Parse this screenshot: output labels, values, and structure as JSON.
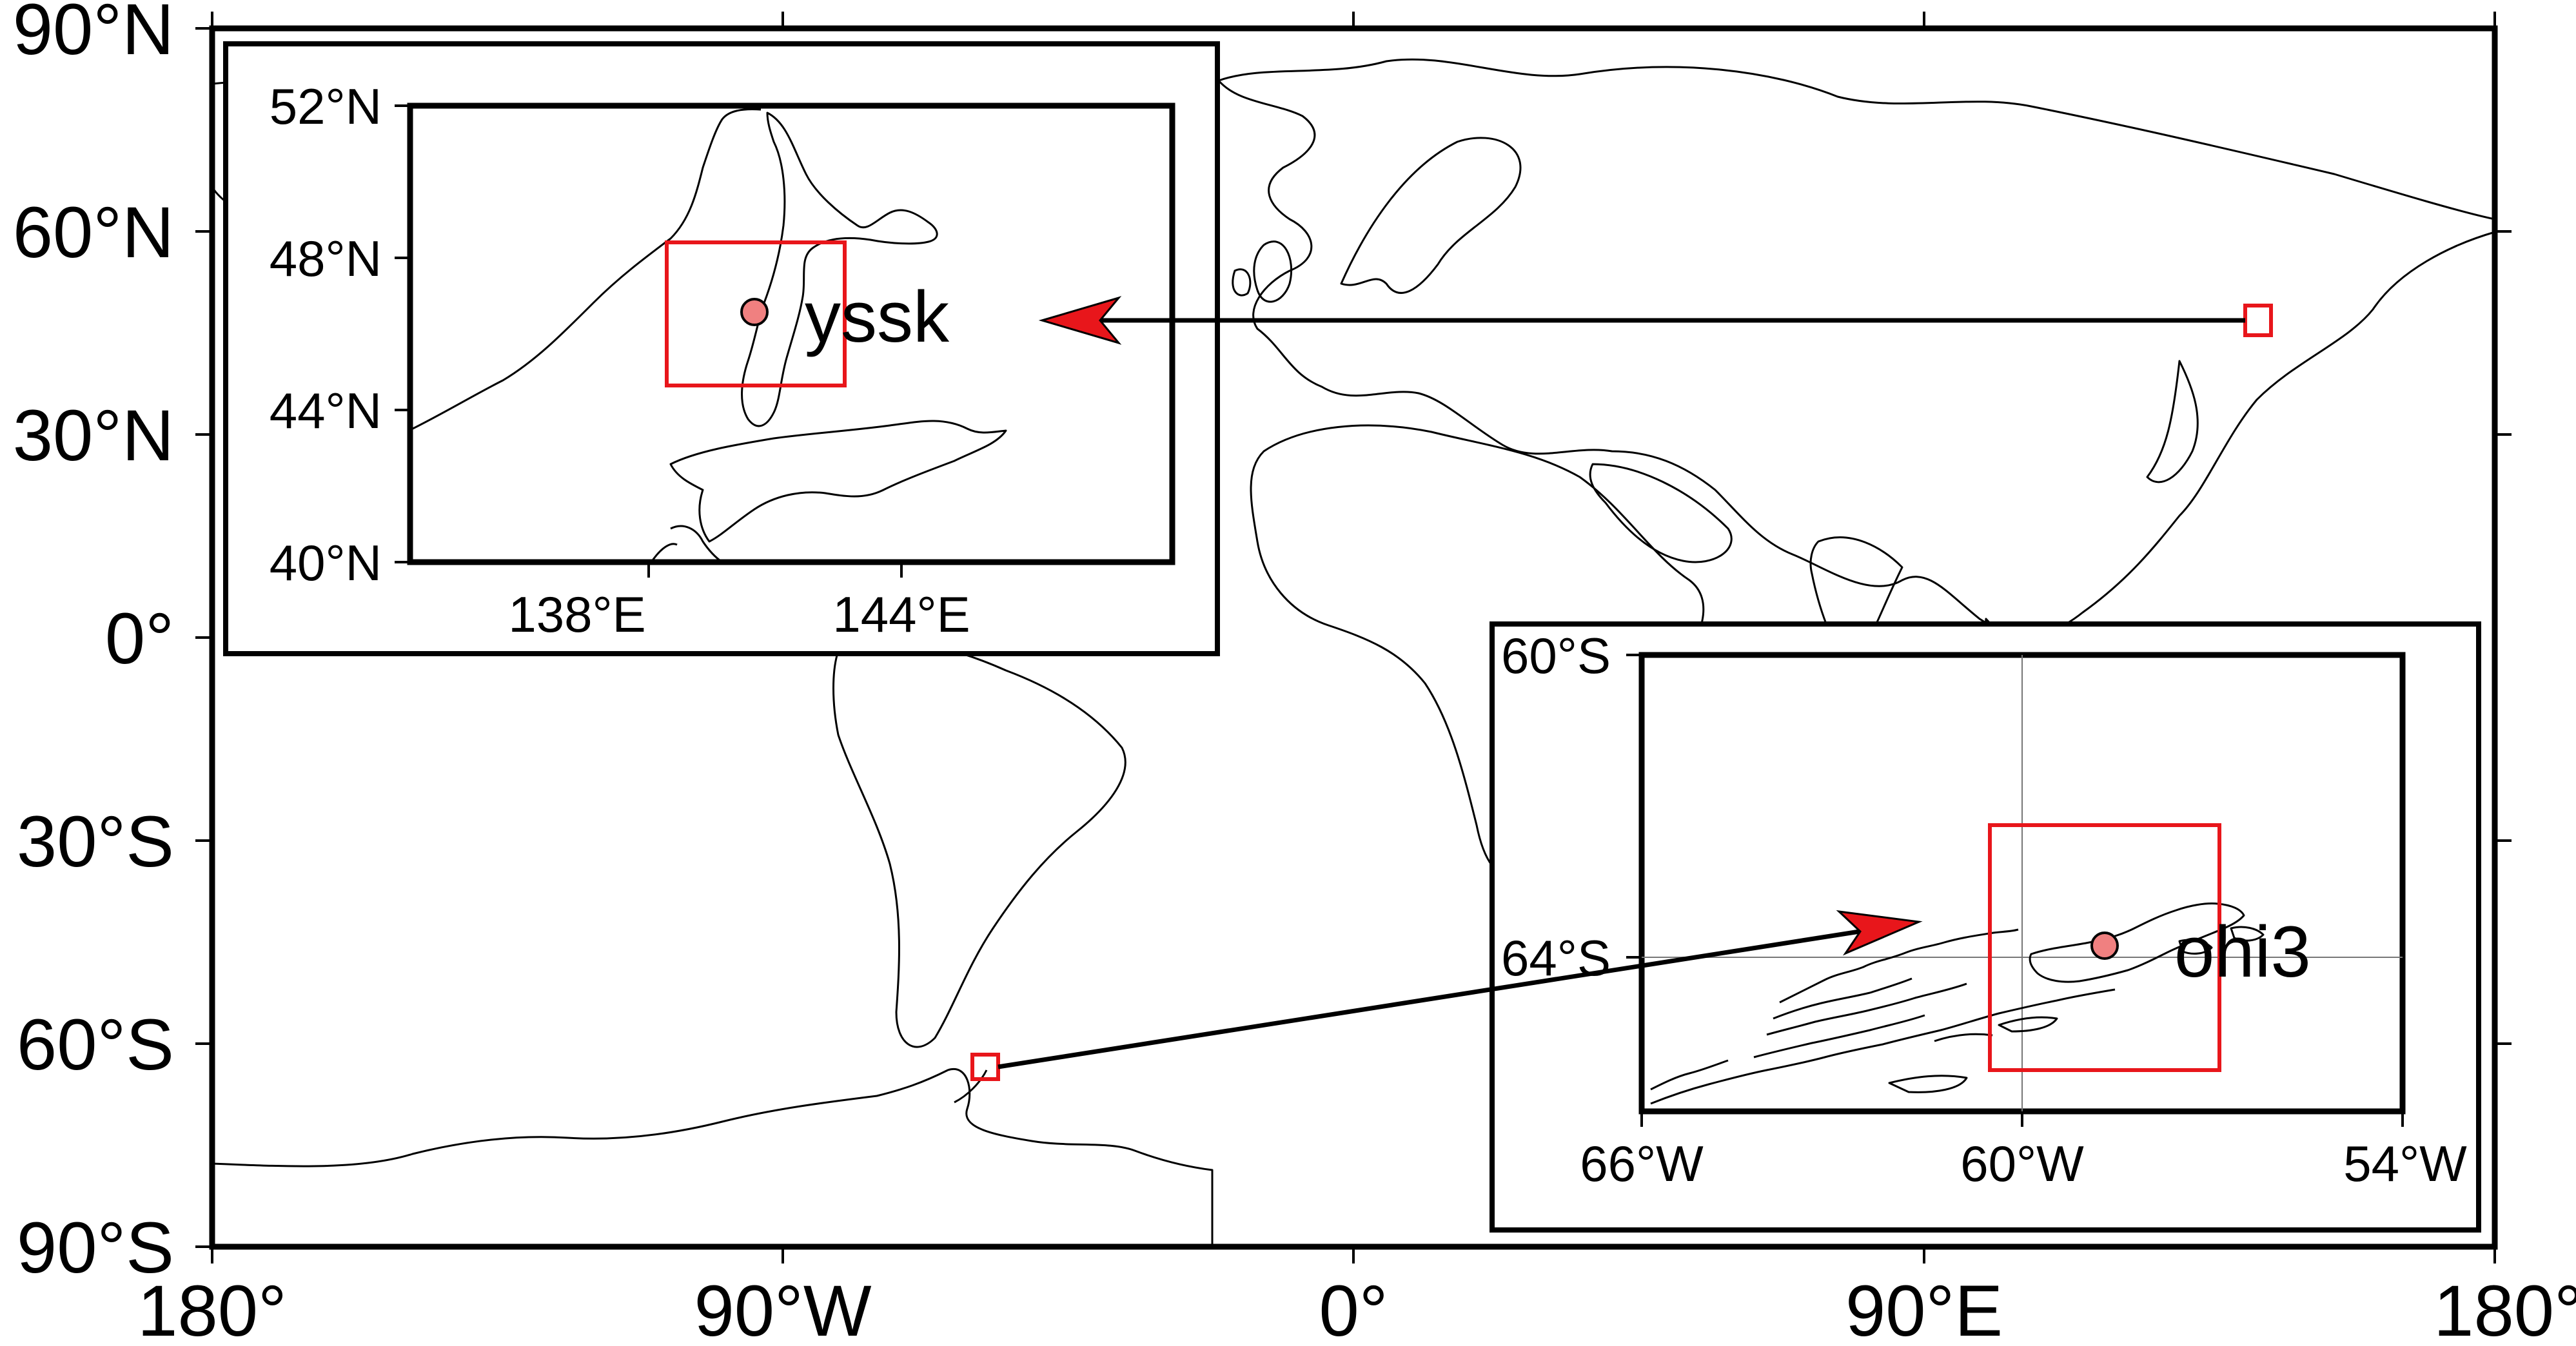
{
  "map": {
    "main": {
      "lat_labels": [
        "90°N",
        "60°N",
        "30°N",
        "0°",
        "30°S",
        "60°S",
        "90°S"
      ],
      "lon_labels": [
        "180°",
        "90°W",
        "0°",
        "90°E",
        "180°"
      ]
    },
    "inset_north": {
      "lat_labels": [
        "52°N",
        "48°N",
        "44°N",
        "40°N"
      ],
      "lon_labels": [
        "138°E",
        "144°E"
      ],
      "station": {
        "name": "yssk",
        "lon": 141.7,
        "lat": 46.95
      },
      "bounds": {
        "lon": [
          133,
          148
        ],
        "lat": [
          40,
          52
        ]
      }
    },
    "inset_south": {
      "lat_labels": [
        "60°S",
        "64°S"
      ],
      "lon_labels": [
        "66°W",
        "60°W",
        "54°W"
      ],
      "station": {
        "name": "ohi3",
        "lon": -57.9,
        "lat": -63.3
      },
      "bounds": {
        "lon": [
          -66,
          -54
        ],
        "lat": [
          -66.3,
          -60
        ]
      }
    },
    "colors": {
      "frame": "#000000",
      "coast": "#000000",
      "highlight": "#e8161b",
      "station_fill": "#f08080",
      "arrow_head": "#e8161b"
    }
  }
}
